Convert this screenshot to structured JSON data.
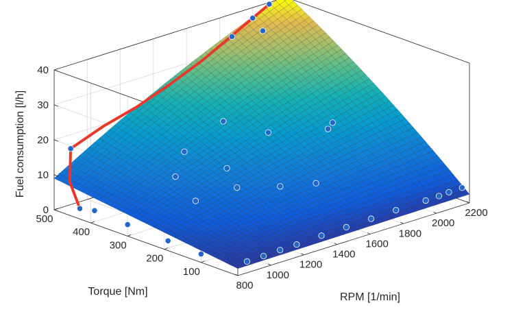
{
  "chart_data": {
    "type": "surface",
    "title": "",
    "xlabel": "RPM [1/min]",
    "ylabel": "Torque [Nm]",
    "zlabel": "Fuel consumption [l/h]",
    "xlim": [
      800,
      2200
    ],
    "ylim": [
      0,
      500
    ],
    "zlim": [
      0,
      40
    ],
    "xticks": [
      "800",
      "1000",
      "1200",
      "1400",
      "1600",
      "1800",
      "2000",
      "2200"
    ],
    "yticks": [
      "100",
      "200",
      "300",
      "400",
      "500"
    ],
    "zticks": [
      "0",
      "10",
      "20",
      "30",
      "40"
    ],
    "grid": true,
    "colormap": "parula",
    "surface_corners": {
      "rpm800_torque0": 2.0,
      "rpm800_torque500": 9.0,
      "rpm2200_torque0": 2.5,
      "rpm2200_torque500": 41.0
    },
    "measured_points": [
      {
        "rpm": 800,
        "torque": 100,
        "fuel": 2.4
      },
      {
        "rpm": 800,
        "torque": 190,
        "fuel": 2.8
      },
      {
        "rpm": 800,
        "torque": 300,
        "fuel": 3.3
      },
      {
        "rpm": 800,
        "torque": 390,
        "fuel": 3.9
      },
      {
        "rpm": 900,
        "torque": 20,
        "fuel": 1.8
      },
      {
        "rpm": 1000,
        "torque": 20,
        "fuel": 1.9
      },
      {
        "rpm": 1100,
        "torque": 20,
        "fuel": 2.1
      },
      {
        "rpm": 1200,
        "torque": 20,
        "fuel": 2.2
      },
      {
        "rpm": 1350,
        "torque": 20,
        "fuel": 2.5
      },
      {
        "rpm": 1500,
        "torque": 20,
        "fuel": 2.7
      },
      {
        "rpm": 1650,
        "torque": 20,
        "fuel": 2.9
      },
      {
        "rpm": 1800,
        "torque": 20,
        "fuel": 3.1
      },
      {
        "rpm": 1980,
        "torque": 20,
        "fuel": 3.2
      },
      {
        "rpm": 2060,
        "torque": 20,
        "fuel": 3.3
      },
      {
        "rpm": 2120,
        "torque": 20,
        "fuel": 3.5
      },
      {
        "rpm": 2200,
        "torque": 20,
        "fuel": 3.6
      },
      {
        "rpm": 1100,
        "torque": 250,
        "fuel": 7.5
      },
      {
        "rpm": 1200,
        "torque": 350,
        "fuel": 9.2
      },
      {
        "rpm": 1320,
        "torque": 380,
        "fuel": 13.4
      },
      {
        "rpm": 1400,
        "torque": 300,
        "fuel": 10.5
      },
      {
        "rpm": 1350,
        "torque": 250,
        "fuel": 7.6
      },
      {
        "rpm": 1500,
        "torque": 200,
        "fuel": 7.6
      },
      {
        "rpm": 1650,
        "torque": 300,
        "fuel": 17.0
      },
      {
        "rpm": 1650,
        "torque": 170,
        "fuel": 7.4
      },
      {
        "rpm": 1900,
        "torque": 250,
        "fuel": 16.2
      },
      {
        "rpm": 1950,
        "torque": 260,
        "fuel": 16.9
      },
      {
        "rpm": 1600,
        "torque": 400,
        "fuel": 17.2
      },
      {
        "rpm": 1830,
        "torque": 480,
        "fuel": 35.0
      },
      {
        "rpm": 1950,
        "torque": 450,
        "fuel": 36.0
      }
    ],
    "max_torque_curve": [
      {
        "rpm": 800,
        "torque": 430,
        "fuel": 3.0
      },
      {
        "rpm": 850,
        "torque": 480,
        "fuel": 8.0
      },
      {
        "rpm": 900,
        "torque": 500,
        "fuel": 16.0
      },
      {
        "rpm": 1100,
        "torque": 500,
        "fuel": 19.5
      },
      {
        "rpm": 1300,
        "torque": 500,
        "fuel": 22.0
      },
      {
        "rpm": 1500,
        "torque": 500,
        "fuel": 25.5
      },
      {
        "rpm": 1700,
        "torque": 500,
        "fuel": 29.5
      },
      {
        "rpm": 1900,
        "torque": 500,
        "fuel": 34.5
      },
      {
        "rpm": 2000,
        "torque": 500,
        "fuel": 37.0
      },
      {
        "rpm": 2100,
        "torque": 500,
        "fuel": 39.5
      }
    ],
    "marker_color": "#2166c8",
    "curve_color": "#e8382c"
  }
}
